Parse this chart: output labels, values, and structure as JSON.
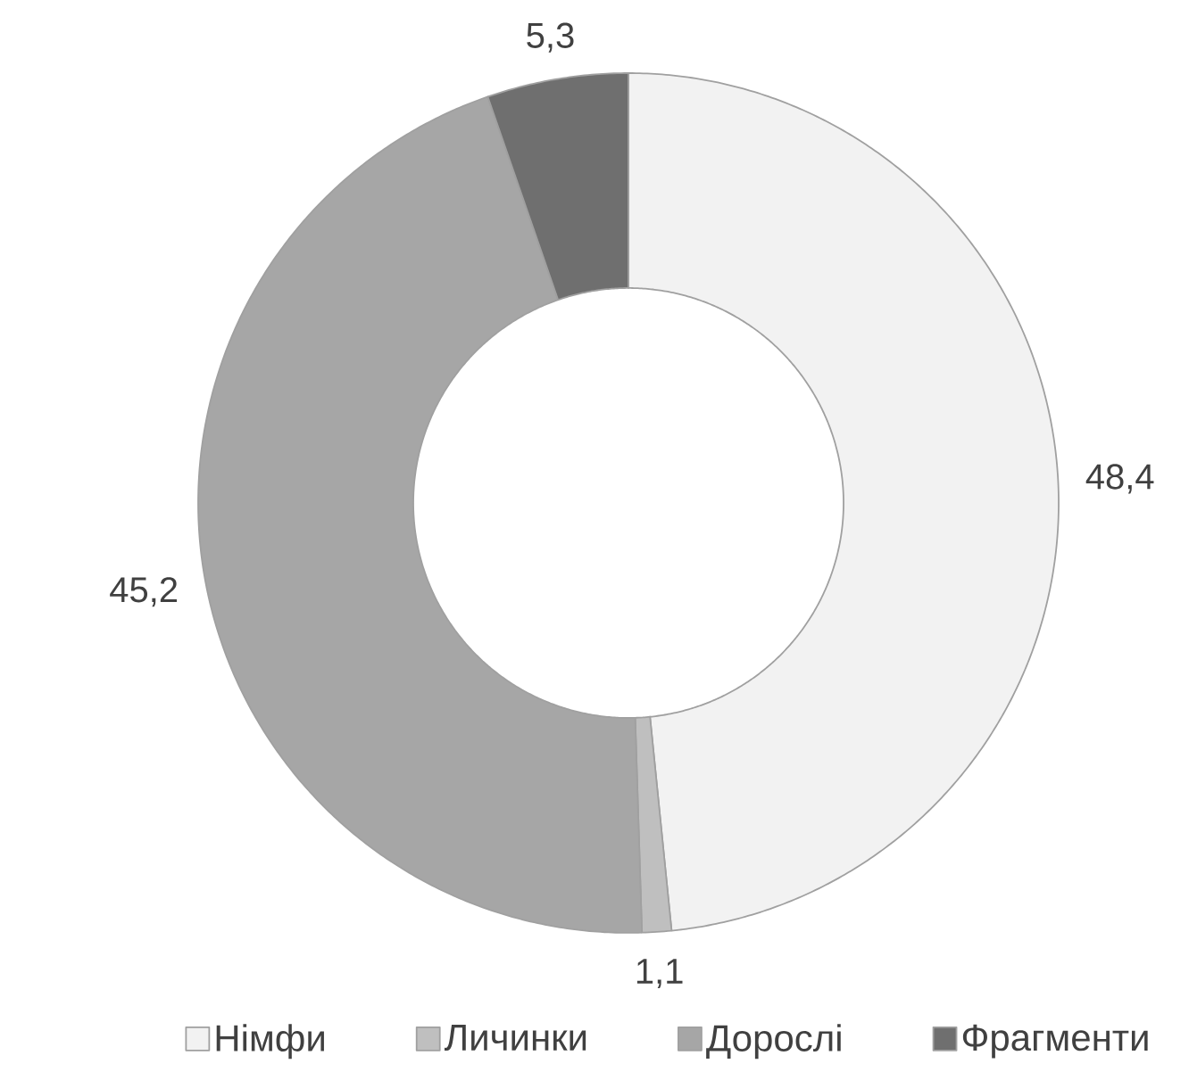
{
  "chart_data": {
    "type": "donut",
    "categories": [
      "Німфи",
      "Личинки",
      "Дорослі",
      "Фрагменти"
    ],
    "values": [
      48.4,
      1.1,
      45.2,
      5.3
    ],
    "colors": [
      "#f2f2f2",
      "#bfbfbf",
      "#a6a6a6",
      "#6f6f6f"
    ],
    "value_labels": [
      "48,4",
      "1,1",
      "45,2",
      "5,3"
    ],
    "legend": "bottom"
  }
}
